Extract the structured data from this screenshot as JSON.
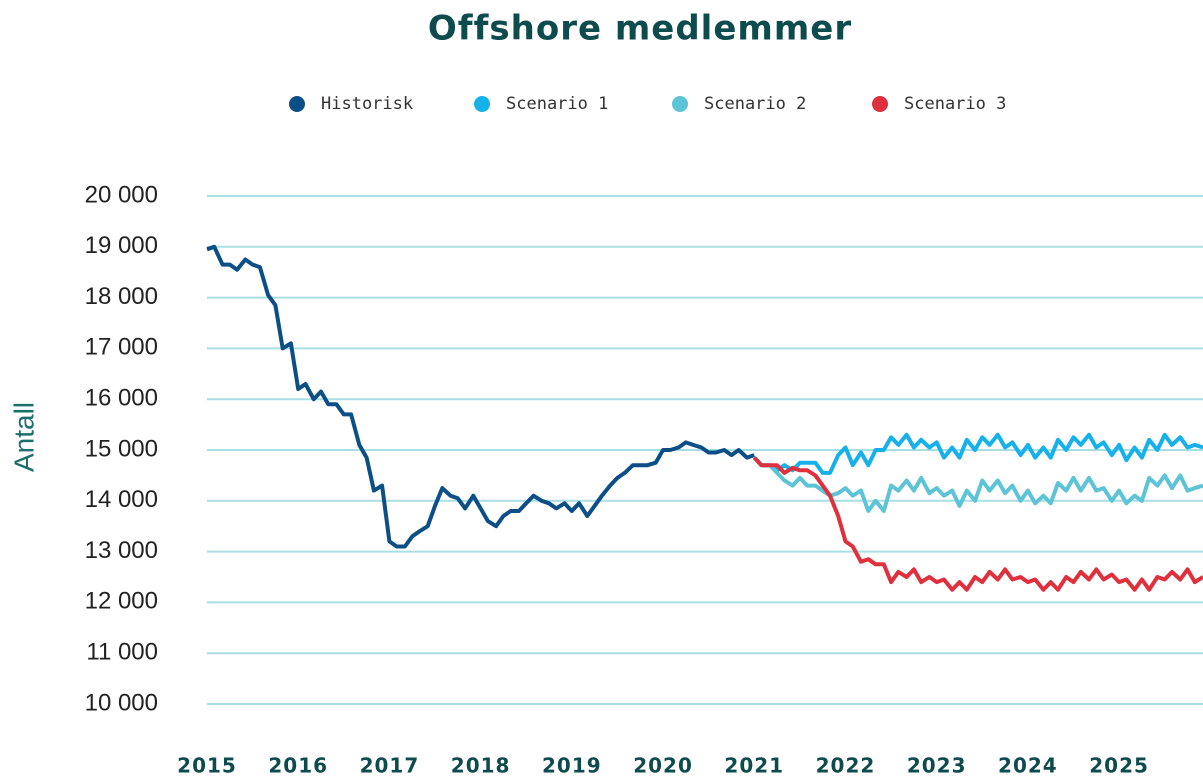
{
  "chart_data": {
    "type": "line",
    "title": "Offshore medlemmer",
    "y_label": "Antall",
    "xlim": [
      2015,
      2025.92
    ],
    "xticks": [
      2015,
      2016,
      2017,
      2018,
      2019,
      2020,
      2021,
      2022,
      2023,
      2024,
      2025
    ],
    "ylim": [
      10000,
      20000
    ],
    "yticks": [
      {
        "value": 10000,
        "label": "10 000"
      },
      {
        "value": 11000,
        "label": "11 000"
      },
      {
        "value": 12000,
        "label": "12 000"
      },
      {
        "value": 13000,
        "label": "13 000"
      },
      {
        "value": 14000,
        "label": "14 000"
      },
      {
        "value": 15000,
        "label": "15 000"
      },
      {
        "value": 16000,
        "label": "16 000"
      },
      {
        "value": 17000,
        "label": "17 000"
      },
      {
        "value": 18000,
        "label": "18 000"
      },
      {
        "value": 19000,
        "label": "19 000"
      },
      {
        "value": 20000,
        "label": "20 000"
      }
    ],
    "grid": true,
    "legend": "top",
    "series": [
      {
        "name": "Historisk",
        "color": "#0b4f86",
        "x": [
          2015,
          2015.08,
          2015.17,
          2015.25,
          2015.33,
          2015.42,
          2015.5,
          2015.58,
          2015.67,
          2015.75,
          2015.83,
          2015.92,
          2016,
          2016.08,
          2016.17,
          2016.25,
          2016.33,
          2016.42,
          2016.5,
          2016.58,
          2016.67,
          2016.75,
          2016.83,
          2016.92,
          2017,
          2017.08,
          2017.17,
          2017.25,
          2017.33,
          2017.42,
          2017.5,
          2017.58,
          2017.67,
          2017.75,
          2017.83,
          2017.92,
          2018,
          2018.08,
          2018.17,
          2018.25,
          2018.33,
          2018.42,
          2018.5,
          2018.58,
          2018.67,
          2018.75,
          2018.83,
          2018.92,
          2019,
          2019.08,
          2019.17,
          2019.25,
          2019.33,
          2019.42,
          2019.5,
          2019.58,
          2019.67,
          2019.75,
          2019.83,
          2019.92,
          2020,
          2020.08,
          2020.17,
          2020.25,
          2020.33,
          2020.42,
          2020.5,
          2020.58,
          2020.67,
          2020.75,
          2020.83,
          2020.92,
          2021
        ],
        "values": [
          18950,
          19000,
          18650,
          18650,
          18550,
          18750,
          18650,
          18600,
          18050,
          17850,
          17000,
          17100,
          16200,
          16300,
          16000,
          16150,
          15900,
          15900,
          15700,
          15700,
          15100,
          14850,
          14200,
          14300,
          13200,
          13100,
          13100,
          13300,
          13400,
          13500,
          13900,
          14250,
          14100,
          14050,
          13850,
          14100,
          13850,
          13600,
          13500,
          13700,
          13800,
          13800,
          13950,
          14100,
          14000,
          13950,
          13850,
          13950,
          13800,
          13950,
          13700,
          13900,
          14100,
          14300,
          14450,
          14550,
          14700,
          14700,
          14700,
          14750,
          15000,
          15000,
          15050,
          15150,
          15100,
          15050,
          14950,
          14950,
          15000,
          14900,
          15000,
          14850,
          14900
        ]
      },
      {
        "name": "Scenario 1",
        "color": "#16b1ea",
        "x": [
          2021,
          2021.08,
          2021.17,
          2021.25,
          2021.33,
          2021.42,
          2021.5,
          2021.58,
          2021.67,
          2021.75,
          2021.83,
          2021.92,
          2022,
          2022.08,
          2022.17,
          2022.25,
          2022.33,
          2022.42,
          2022.5,
          2022.58,
          2022.67,
          2022.75,
          2022.83,
          2022.92,
          2023,
          2023.08,
          2023.17,
          2023.25,
          2023.33,
          2023.42,
          2023.5,
          2023.58,
          2023.67,
          2023.75,
          2023.83,
          2023.92,
          2024,
          2024.08,
          2024.17,
          2024.25,
          2024.33,
          2024.42,
          2024.5,
          2024.58,
          2024.67,
          2024.75,
          2024.83,
          2024.92,
          2025,
          2025.08,
          2025.17,
          2025.25,
          2025.33,
          2025.42,
          2025.5,
          2025.58,
          2025.67,
          2025.75,
          2025.83,
          2025.92
        ],
        "values": [
          14850,
          14700,
          14700,
          14600,
          14700,
          14600,
          14750,
          14750,
          14750,
          14550,
          14550,
          14900,
          15050,
          14700,
          14950,
          14700,
          15000,
          15000,
          15250,
          15100,
          15300,
          15050,
          15200,
          15050,
          15150,
          14850,
          15050,
          14850,
          15200,
          15000,
          15250,
          15100,
          15300,
          15050,
          15150,
          14900,
          15100,
          14850,
          15050,
          14850,
          15200,
          15000,
          15250,
          15100,
          15300,
          15050,
          15150,
          14900,
          15100,
          14800,
          15050,
          14850,
          15200,
          15000,
          15300,
          15100,
          15250,
          15050,
          15100,
          15050
        ]
      },
      {
        "name": "Scenario 2",
        "color": "#5cc4d6",
        "x": [
          2021,
          2021.08,
          2021.17,
          2021.25,
          2021.33,
          2021.42,
          2021.5,
          2021.58,
          2021.67,
          2021.75,
          2021.83,
          2021.92,
          2022,
          2022.08,
          2022.17,
          2022.25,
          2022.33,
          2022.42,
          2022.5,
          2022.58,
          2022.67,
          2022.75,
          2022.83,
          2022.92,
          2023,
          2023.08,
          2023.17,
          2023.25,
          2023.33,
          2023.42,
          2023.5,
          2023.58,
          2023.67,
          2023.75,
          2023.83,
          2023.92,
          2024,
          2024.08,
          2024.17,
          2024.25,
          2024.33,
          2024.42,
          2024.5,
          2024.58,
          2024.67,
          2024.75,
          2024.83,
          2024.92,
          2025,
          2025.08,
          2025.17,
          2025.25,
          2025.33,
          2025.42,
          2025.5,
          2025.58,
          2025.67,
          2025.75,
          2025.83,
          2025.92
        ],
        "values": [
          14850,
          14700,
          14700,
          14550,
          14400,
          14300,
          14450,
          14300,
          14300,
          14200,
          14100,
          14150,
          14250,
          14100,
          14200,
          13800,
          14000,
          13800,
          14300,
          14200,
          14400,
          14200,
          14450,
          14150,
          14250,
          14100,
          14200,
          13900,
          14200,
          14000,
          14400,
          14200,
          14400,
          14150,
          14300,
          14000,
          14200,
          13950,
          14100,
          13950,
          14350,
          14200,
          14450,
          14200,
          14450,
          14200,
          14250,
          14000,
          14200,
          13950,
          14100,
          14000,
          14450,
          14300,
          14500,
          14250,
          14500,
          14200,
          14250,
          14300
        ]
      },
      {
        "name": "Scenario 3",
        "color": "#e0303e",
        "x": [
          2021,
          2021.08,
          2021.17,
          2021.25,
          2021.33,
          2021.42,
          2021.5,
          2021.58,
          2021.67,
          2021.75,
          2021.83,
          2021.92,
          2022,
          2022.08,
          2022.17,
          2022.25,
          2022.33,
          2022.42,
          2022.5,
          2022.58,
          2022.67,
          2022.75,
          2022.83,
          2022.92,
          2023,
          2023.08,
          2023.17,
          2023.25,
          2023.33,
          2023.42,
          2023.5,
          2023.58,
          2023.67,
          2023.75,
          2023.83,
          2023.92,
          2024,
          2024.08,
          2024.17,
          2024.25,
          2024.33,
          2024.42,
          2024.5,
          2024.58,
          2024.67,
          2024.75,
          2024.83,
          2024.92,
          2025,
          2025.08,
          2025.17,
          2025.25,
          2025.33,
          2025.42,
          2025.5,
          2025.58,
          2025.67,
          2025.75,
          2025.83,
          2025.92
        ],
        "values": [
          14850,
          14700,
          14700,
          14700,
          14550,
          14650,
          14600,
          14600,
          14500,
          14300,
          14100,
          13700,
          13200,
          13100,
          12800,
          12850,
          12750,
          12750,
          12400,
          12600,
          12500,
          12650,
          12400,
          12500,
          12400,
          12450,
          12250,
          12400,
          12250,
          12500,
          12400,
          12600,
          12450,
          12650,
          12450,
          12500,
          12400,
          12450,
          12250,
          12400,
          12250,
          12500,
          12400,
          12600,
          12450,
          12650,
          12450,
          12550,
          12400,
          12450,
          12250,
          12450,
          12250,
          12500,
          12450,
          12600,
          12450,
          12650,
          12400,
          12500
        ]
      }
    ]
  }
}
